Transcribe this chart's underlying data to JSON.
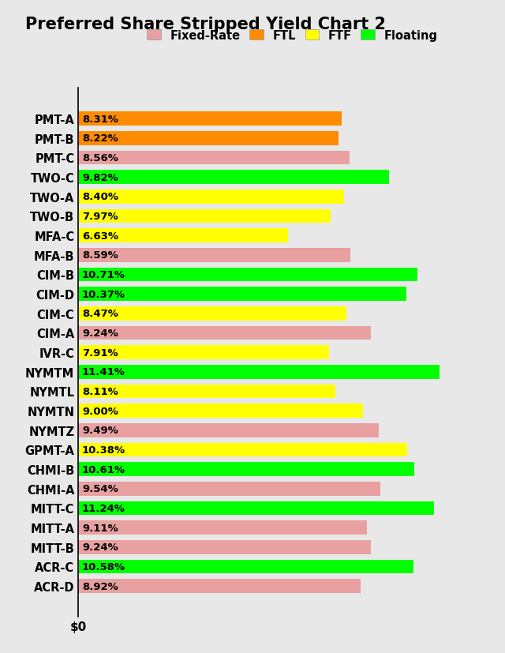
{
  "title": "Preferred Share Stripped Yield Chart 2",
  "categories": [
    "PMT-A",
    "PMT-B",
    "PMT-C",
    "TWO-C",
    "TWO-A",
    "TWO-B",
    "MFA-C",
    "MFA-B",
    "CIM-B",
    "CIM-D",
    "CIM-C",
    "CIM-A",
    "IVR-C",
    "NYMTM",
    "NYMTL",
    "NYMTN",
    "NYMTZ",
    "GPMT-A",
    "CHMI-B",
    "CHMI-A",
    "MITT-C",
    "MITT-A",
    "MITT-B",
    "ACR-C",
    "ACR-D"
  ],
  "values": [
    8.31,
    8.22,
    8.56,
    9.82,
    8.4,
    7.97,
    6.63,
    8.59,
    10.71,
    10.37,
    8.47,
    9.24,
    7.91,
    11.41,
    8.11,
    9.0,
    9.49,
    10.38,
    10.61,
    9.54,
    11.24,
    9.11,
    9.24,
    10.58,
    8.92
  ],
  "bar_types": [
    "FTL",
    "FTL",
    "Fixed-Rate",
    "Floating",
    "FTF",
    "FTF",
    "FTF",
    "Fixed-Rate",
    "Floating",
    "Floating",
    "FTF",
    "Fixed-Rate",
    "FTF",
    "Floating",
    "FTF",
    "FTF",
    "Fixed-Rate",
    "FTF",
    "Floating",
    "Fixed-Rate",
    "Floating",
    "Fixed-Rate",
    "Fixed-Rate",
    "Floating",
    "Fixed-Rate"
  ],
  "colors": {
    "Fixed-Rate": "#E8A0A0",
    "FTL": "#FF8C00",
    "FTF": "#FFFF00",
    "Floating": "#00FF00"
  },
  "legend_order": [
    "Fixed-Rate",
    "FTL",
    "FTF",
    "Floating"
  ],
  "xlabel": "$0",
  "background_color": "#E8E8E8",
  "title_fontsize": 15,
  "label_fontsize": 10.5,
  "bar_label_fontsize": 9.5
}
